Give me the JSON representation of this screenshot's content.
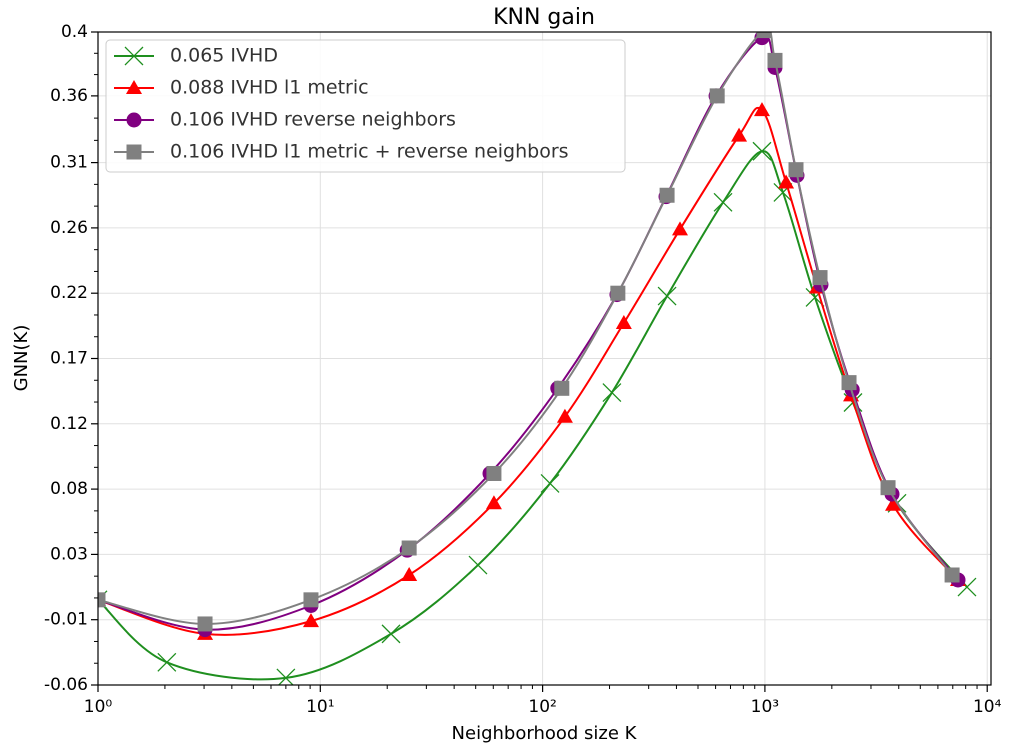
{
  "chart_data": {
    "type": "line",
    "title": "KNN gain",
    "xlabel": "Neighborhood size K",
    "ylabel": "GNN(K)",
    "xscale": "log",
    "xlim": [
      1,
      10400
    ],
    "ylim": [
      -0.06,
      0.4
    ],
    "grid": true,
    "legend": "upper left",
    "xticks": [
      {
        "value": 1,
        "label": "10⁰"
      },
      {
        "value": 10,
        "label": "10¹"
      },
      {
        "value": 100,
        "label": "10²"
      },
      {
        "value": 1000,
        "label": "10³"
      },
      {
        "value": 10000,
        "label": "10⁴"
      }
    ],
    "yticks": [
      -0.06,
      {
        "value": -0.014,
        "label": "-0.01"
      },
      {
        "value": 0.032,
        "label": "0.03"
      },
      {
        "value": 0.078,
        "label": "0.08"
      },
      {
        "value": 0.124,
        "label": "0.12"
      },
      0.17,
      {
        "value": 0.216,
        "label": "0.22"
      },
      {
        "value": 0.262,
        "label": "0.26"
      },
      {
        "value": 0.308,
        "label": "0.31"
      },
      {
        "value": 0.355,
        "label": "0.36"
      },
      0.4
    ],
    "series": [
      {
        "name": "0.065 IVHD",
        "color": "#1f8f1f",
        "marker": "x",
        "x": [
          1,
          2.04,
          7.0,
          20.8,
          51.2,
          108,
          205,
          363,
          648,
          970,
          1205,
          1680,
          2490,
          3930,
          8110
        ],
        "values": [
          0.0,
          -0.044,
          -0.055,
          -0.024,
          0.0245,
          0.082,
          0.146,
          0.214,
          0.28,
          0.316,
          0.287,
          0.213,
          0.139,
          0.068,
          0.009
        ]
      },
      {
        "name": "0.088 IVHD l1 metric",
        "color": "#ff0000",
        "marker": "triangle",
        "x": [
          1,
          3.03,
          9.08,
          25.1,
          60.4,
          126,
          232,
          415,
          765,
          970,
          1245,
          1715,
          2440,
          3770,
          7390
        ],
        "values": [
          0.0,
          -0.024,
          -0.015,
          0.0175,
          0.068,
          0.129,
          0.195,
          0.261,
          0.327,
          0.345,
          0.294,
          0.22,
          0.144,
          0.067,
          0.014
        ]
      },
      {
        "name": "0.106 IVHD reverse neighbors",
        "color": "#800080",
        "marker": "circle",
        "x": [
          1,
          3.03,
          9.08,
          24.6,
          58,
          117,
          216,
          359,
          603,
          970,
          1110,
          1394,
          1787,
          2470,
          3730,
          7390
        ],
        "values": [
          0.0,
          -0.021,
          -0.004,
          0.035,
          0.089,
          0.149,
          0.215,
          0.284,
          0.355,
          0.396,
          0.375,
          0.299,
          0.222,
          0.148,
          0.0745,
          0.014
        ]
      },
      {
        "name": "0.106 IVHD l1 metric + reverse neighbors",
        "color": "#808080",
        "marker": "square",
        "x": [
          1,
          3.03,
          9.08,
          25.1,
          60.4,
          122,
          218,
          363,
          610,
          991,
          1110,
          1380,
          1770,
          2390,
          3580,
          6950
        ],
        "values": [
          0.0,
          -0.017,
          0.0,
          0.0365,
          0.089,
          0.149,
          0.216,
          0.285,
          0.355,
          0.401,
          0.38,
          0.303,
          0.227,
          0.153,
          0.079,
          0.0175
        ]
      }
    ]
  }
}
